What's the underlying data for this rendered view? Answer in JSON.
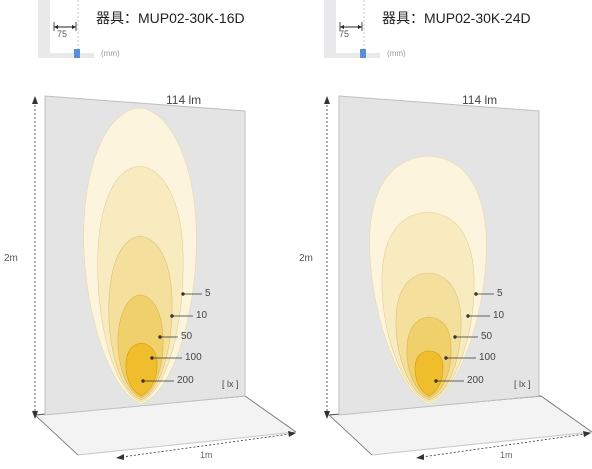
{
  "panels": [
    {
      "fixture_label": "器具：MUP02-30K-16D",
      "dim_value": "75",
      "dim_unit": "(mm)",
      "lumen": "114 lm",
      "height": "2m",
      "width": "1m",
      "unit": "[ lx ]",
      "contours": [
        {
          "lux": "5",
          "color": "#fcf4dc"
        },
        {
          "lux": "10",
          "color": "#f8ebc0"
        },
        {
          "lux": "50",
          "color": "#f4df9c"
        },
        {
          "lux": "100",
          "color": "#f0d06a"
        },
        {
          "lux": "200",
          "color": "#f0bd2c"
        }
      ]
    },
    {
      "fixture_label": "器具：MUP02-30K-24D",
      "dim_value": "75",
      "dim_unit": "(mm)",
      "lumen": "114 lm",
      "height": "2m",
      "width": "1m",
      "unit": "[ lx ]",
      "contours": [
        {
          "lux": "5",
          "color": "#fcf4dc"
        },
        {
          "lux": "10",
          "color": "#f8ebc0"
        },
        {
          "lux": "50",
          "color": "#f4df9c"
        },
        {
          "lux": "100",
          "color": "#f0d06a"
        },
        {
          "lux": "200",
          "color": "#f0bd2c"
        }
      ]
    }
  ]
}
